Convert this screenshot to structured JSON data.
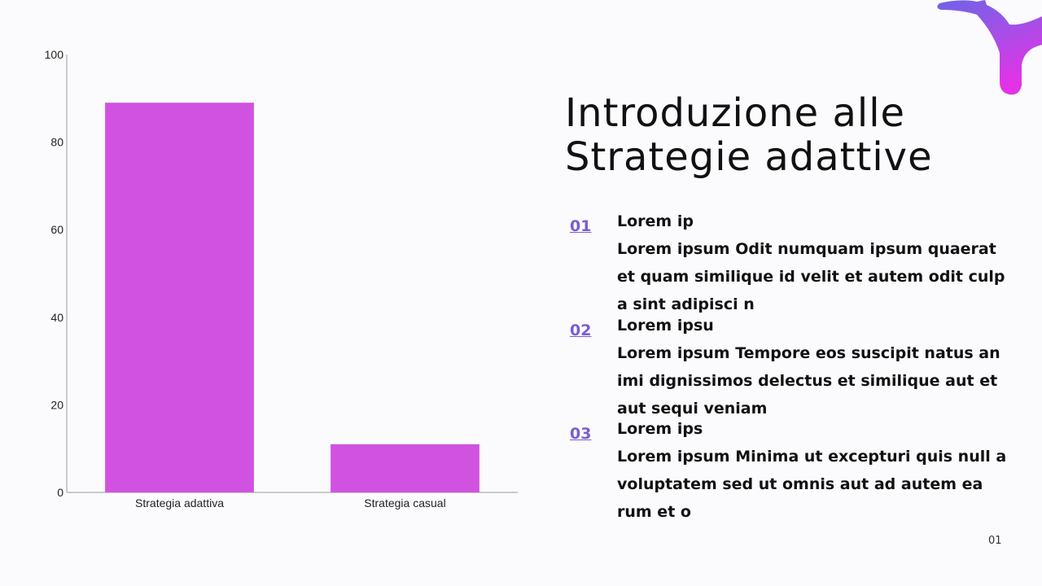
{
  "title_lines": [
    "Introduzione alle",
    "Strategie adattive"
  ],
  "items": [
    {
      "number": "01",
      "heading": "Lorem ip",
      "body": "Lorem ipsum Odit numquam ipsum quaerat et quam similique id velit et autem odit culp a sint adipisci n"
    },
    {
      "number": "02",
      "heading": "Lorem ipsu",
      "body": "Lorem ipsum Tempore eos suscipit natus an imi dignissimos delectus et similique aut et aut sequi veniam"
    },
    {
      "number": "03",
      "heading": "Lorem ips",
      "body": "Lorem ipsum Minima ut excepturi quis null a voluptatem sed ut omnis aut ad autem ea rum et o"
    }
  ],
  "page_number": "01",
  "colors": {
    "bar": "#d152e0",
    "number": "#7b5bd6"
  },
  "decoration_icon": "purple-gradient-blob-icon",
  "chart_data": {
    "type": "bar",
    "categories": [
      "Strategia adattiva",
      "Strategia casual"
    ],
    "values": [
      89,
      11
    ],
    "ylim": [
      0,
      100
    ],
    "yticks": [
      0,
      20,
      40,
      60,
      80,
      100
    ],
    "grid": false,
    "legend": "none"
  }
}
